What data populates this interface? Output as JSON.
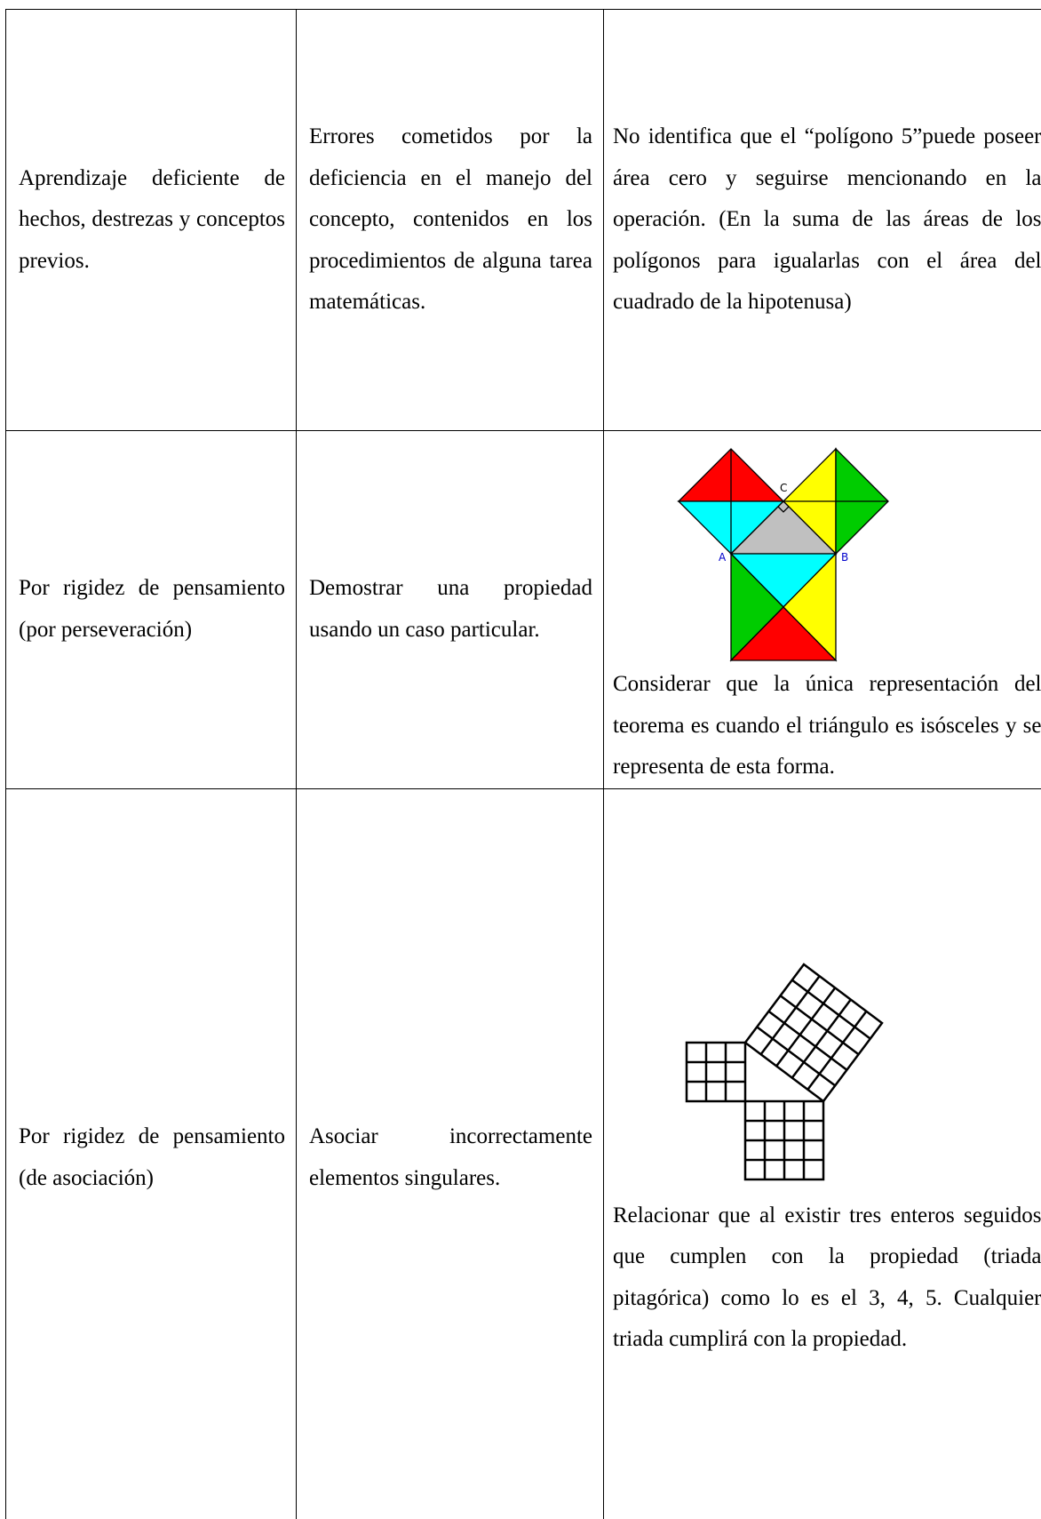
{
  "table": {
    "rows": [
      [
        "Aprendizaje deficiente de hechos, destrezas y conceptos previos.",
        "Errores cometidos por la deficiencia en el manejo del concepto, contenidos en los procedimientos de alguna tarea matemáticas.",
        "No identifica que el “polígono 5”puede poseer área cero y seguirse mencionando en la operación. (En la suma de las áreas de los polígonos para igualarlas con el área del cuadrado de la hipotenusa)"
      ],
      [
        "Por rigidez de pensamiento (por perseveración)",
        "Demostrar una propiedad usando un caso particular.",
        "Considerar que la única representación del teorema es cuando el triángulo es isósceles y se representa de esta forma."
      ],
      [
        "Por rigidez de pensamiento (de asociación)",
        "Asociar incorrectamente elementos singulares.",
        "Relacionar que al existir tres enteros seguidos que cumplen con la propiedad (triada pitagórica) como lo es el 3, 4, 5. Cualquier triada cumplirá con la propiedad."
      ]
    ]
  },
  "figures": {
    "triangle_labels": [
      "C",
      "A",
      "B"
    ]
  }
}
